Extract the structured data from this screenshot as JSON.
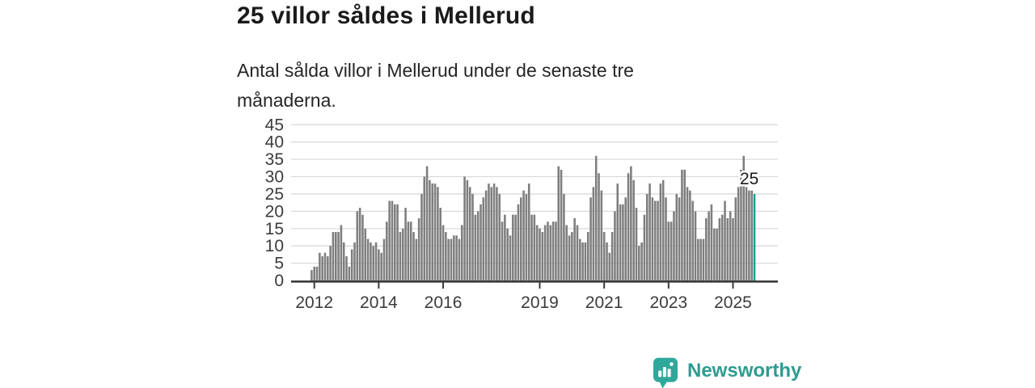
{
  "header": {
    "title": "25 villor såldes i Mellerud",
    "subtitle": "Antal sålda villor i Mellerud under de senaste tre månaderna."
  },
  "chart_data": {
    "type": "bar",
    "title": "25 villor såldes i Mellerud",
    "xlabel": "",
    "ylabel": "",
    "x_start": "2011-12",
    "x_end": "2025-09",
    "months_per_bar": 1,
    "x_tick_labels": [
      "2012",
      "2014",
      "2016",
      "2019",
      "2021",
      "2023",
      "2025"
    ],
    "y_ticks": [
      0,
      5,
      10,
      15,
      20,
      25,
      30,
      35,
      40,
      45
    ],
    "ylim": [
      0,
      45
    ],
    "grid": true,
    "legend": false,
    "annotation_last_value": "25",
    "highlight_last_bar": true,
    "values": [
      3,
      4,
      4,
      8,
      7,
      8,
      7,
      10,
      14,
      14,
      14,
      16,
      11,
      7,
      4,
      9,
      11,
      20,
      21,
      19,
      15,
      12,
      11,
      10,
      11,
      9,
      8,
      12,
      17,
      23,
      23,
      22,
      22,
      14,
      15,
      21,
      17,
      17,
      14,
      12,
      18,
      25,
      30,
      33,
      29,
      28,
      28,
      27,
      21,
      16,
      14,
      12,
      12,
      13,
      13,
      12,
      16,
      30,
      29,
      27,
      25,
      19,
      20,
      22,
      24,
      26,
      28,
      27,
      28,
      27,
      25,
      17,
      19,
      15,
      13,
      19,
      19,
      22,
      24,
      26,
      25,
      28,
      19,
      19,
      16,
      15,
      14,
      16,
      17,
      16,
      17,
      17,
      33,
      32,
      25,
      16,
      13,
      14,
      18,
      16,
      12,
      11,
      11,
      14,
      24,
      27,
      36,
      31,
      26,
      14,
      11,
      8,
      14,
      20,
      28,
      22,
      22,
      24,
      31,
      33,
      29,
      21,
      10,
      11,
      19,
      25,
      28,
      24,
      23,
      23,
      28,
      29,
      24,
      17,
      17,
      20,
      25,
      24,
      32,
      32,
      27,
      26,
      23,
      20,
      12,
      12,
      12,
      18,
      20,
      22,
      15,
      15,
      18,
      19,
      23,
      18,
      20,
      18,
      24,
      27,
      32,
      36,
      27,
      26,
      26,
      25
    ]
  },
  "colors": {
    "bar": "#7E7E7E",
    "highlight": "#0FA294",
    "grid": "#DBDBDB",
    "axis": "#3A3A3A",
    "tick_text": "#3C3C3C",
    "title": "#1A1A1A",
    "brand": "#2E9B91",
    "brand_icon": "#2FA89B"
  },
  "footer": {
    "brand": "Newsworthy"
  }
}
